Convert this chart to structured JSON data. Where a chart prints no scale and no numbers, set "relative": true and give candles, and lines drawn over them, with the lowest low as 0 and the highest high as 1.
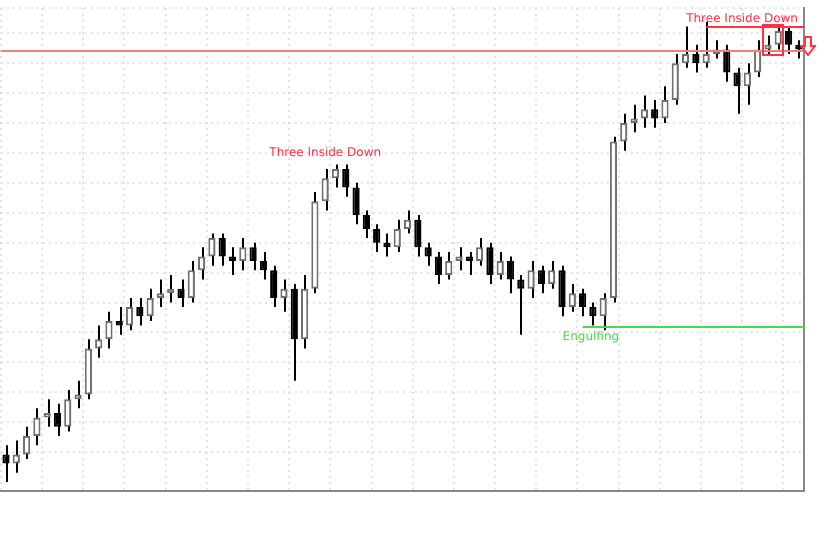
{
  "chart_data": {
    "type": "candlestick",
    "relative": true,
    "grid": true,
    "legend": false,
    "categories": [
      null,
      null,
      null,
      null,
      null,
      null,
      null,
      null,
      null,
      null,
      null,
      null,
      null,
      null,
      null,
      null,
      null,
      null,
      null,
      null,
      null,
      null,
      null,
      null,
      null,
      null,
      null,
      null,
      null,
      null,
      null,
      null,
      null,
      null,
      null,
      null,
      null,
      null,
      null,
      null,
      null,
      null,
      null,
      null,
      null,
      null,
      null,
      null,
      null,
      null,
      null,
      null,
      null,
      null,
      null,
      null,
      null,
      null,
      null,
      null,
      null,
      null,
      null,
      null,
      null,
      null,
      null,
      null,
      null,
      null,
      null,
      null,
      null,
      null,
      null,
      null,
      null,
      null
    ],
    "ohlc": [
      [
        0.06,
        0.08,
        0.0,
        0.04
      ],
      [
        0.04,
        0.09,
        0.02,
        0.06
      ],
      [
        0.06,
        0.12,
        0.05,
        0.1
      ],
      [
        0.1,
        0.16,
        0.08,
        0.14
      ],
      [
        0.14,
        0.18,
        0.12,
        0.15
      ],
      [
        0.15,
        0.17,
        0.1,
        0.12
      ],
      [
        0.12,
        0.2,
        0.11,
        0.18
      ],
      [
        0.18,
        0.22,
        0.16,
        0.19
      ],
      [
        0.19,
        0.31,
        0.18,
        0.29
      ],
      [
        0.29,
        0.34,
        0.27,
        0.31
      ],
      [
        0.31,
        0.37,
        0.29,
        0.35
      ],
      [
        0.35,
        0.38,
        0.32,
        0.34
      ],
      [
        0.34,
        0.4,
        0.33,
        0.38
      ],
      [
        0.38,
        0.4,
        0.34,
        0.36
      ],
      [
        0.36,
        0.42,
        0.35,
        0.4
      ],
      [
        0.4,
        0.44,
        0.38,
        0.41
      ],
      [
        0.41,
        0.45,
        0.39,
        0.42
      ],
      [
        0.42,
        0.44,
        0.38,
        0.4
      ],
      [
        0.4,
        0.48,
        0.39,
        0.46
      ],
      [
        0.46,
        0.51,
        0.44,
        0.49
      ],
      [
        0.49,
        0.54,
        0.47,
        0.53
      ],
      [
        0.53,
        0.54,
        0.47,
        0.49
      ],
      [
        0.49,
        0.51,
        0.45,
        0.48
      ],
      [
        0.48,
        0.53,
        0.46,
        0.51
      ],
      [
        0.51,
        0.52,
        0.46,
        0.48
      ],
      [
        0.48,
        0.5,
        0.44,
        0.46
      ],
      [
        0.46,
        0.47,
        0.38,
        0.4
      ],
      [
        0.4,
        0.44,
        0.37,
        0.42
      ],
      [
        0.42,
        0.43,
        0.22,
        0.31
      ],
      [
        0.31,
        0.45,
        0.29,
        0.42
      ],
      [
        0.42,
        0.63,
        0.41,
        0.61
      ],
      [
        0.61,
        0.68,
        0.59,
        0.66
      ],
      [
        0.66,
        0.69,
        0.64,
        0.68
      ],
      [
        0.68,
        0.69,
        0.62,
        0.64
      ],
      [
        0.64,
        0.65,
        0.56,
        0.58
      ],
      [
        0.58,
        0.59,
        0.53,
        0.55
      ],
      [
        0.55,
        0.56,
        0.5,
        0.52
      ],
      [
        0.52,
        0.54,
        0.49,
        0.51
      ],
      [
        0.51,
        0.57,
        0.5,
        0.55
      ],
      [
        0.55,
        0.59,
        0.54,
        0.57
      ],
      [
        0.57,
        0.58,
        0.49,
        0.51
      ],
      [
        0.51,
        0.52,
        0.47,
        0.49
      ],
      [
        0.49,
        0.5,
        0.43,
        0.45
      ],
      [
        0.45,
        0.5,
        0.44,
        0.48
      ],
      [
        0.48,
        0.51,
        0.46,
        0.49
      ],
      [
        0.49,
        0.5,
        0.45,
        0.48
      ],
      [
        0.48,
        0.53,
        0.47,
        0.51
      ],
      [
        0.51,
        0.52,
        0.43,
        0.45
      ],
      [
        0.45,
        0.5,
        0.44,
        0.48
      ],
      [
        0.48,
        0.49,
        0.41,
        0.44
      ],
      [
        0.44,
        0.45,
        0.32,
        0.42
      ],
      [
        0.42,
        0.48,
        0.4,
        0.46
      ],
      [
        0.46,
        0.47,
        0.41,
        0.43
      ],
      [
        0.43,
        0.48,
        0.42,
        0.46
      ],
      [
        0.46,
        0.47,
        0.36,
        0.38
      ],
      [
        0.38,
        0.43,
        0.37,
        0.41
      ],
      [
        0.41,
        0.42,
        0.36,
        0.38
      ],
      [
        0.38,
        0.39,
        0.34,
        0.36
      ],
      [
        0.36,
        0.41,
        0.33,
        0.4
      ],
      [
        0.4,
        0.75,
        0.39,
        0.74
      ],
      [
        0.74,
        0.8,
        0.72,
        0.78
      ],
      [
        0.78,
        0.82,
        0.76,
        0.79
      ],
      [
        0.79,
        0.84,
        0.77,
        0.81
      ],
      [
        0.81,
        0.83,
        0.77,
        0.79
      ],
      [
        0.79,
        0.86,
        0.78,
        0.83
      ],
      [
        0.83,
        0.93,
        0.82,
        0.91
      ],
      [
        0.91,
        0.99,
        0.9,
        0.93
      ],
      [
        0.93,
        0.95,
        0.89,
        0.91
      ],
      [
        0.91,
        1.0,
        0.9,
        0.93
      ],
      [
        0.93,
        0.96,
        0.92,
        0.94
      ],
      [
        0.94,
        0.95,
        0.87,
        0.89
      ],
      [
        0.89,
        0.9,
        0.8,
        0.86
      ],
      [
        0.86,
        0.91,
        0.82,
        0.89
      ],
      [
        0.89,
        0.96,
        0.88,
        0.94
      ],
      [
        0.94,
        0.97,
        0.93,
        0.95
      ],
      [
        0.95,
        0.99,
        0.94,
        0.98
      ],
      [
        0.98,
        0.99,
        0.93,
        0.95
      ],
      [
        0.95,
        0.96,
        0.92,
        0.94
      ]
    ],
    "ref_lines": [
      {
        "axis": "y",
        "value": 0.94,
        "color": "#f08080"
      },
      {
        "axis": "y",
        "value": 0.99,
        "label": "Three Inside Down",
        "color": "#ff3344"
      },
      {
        "axis": "y",
        "value": 0.34,
        "label": "Engulfing",
        "color": "#44dd44"
      }
    ],
    "annotations": [
      {
        "text": "Three Inside Down",
        "y": 0.69
      }
    ]
  }
}
